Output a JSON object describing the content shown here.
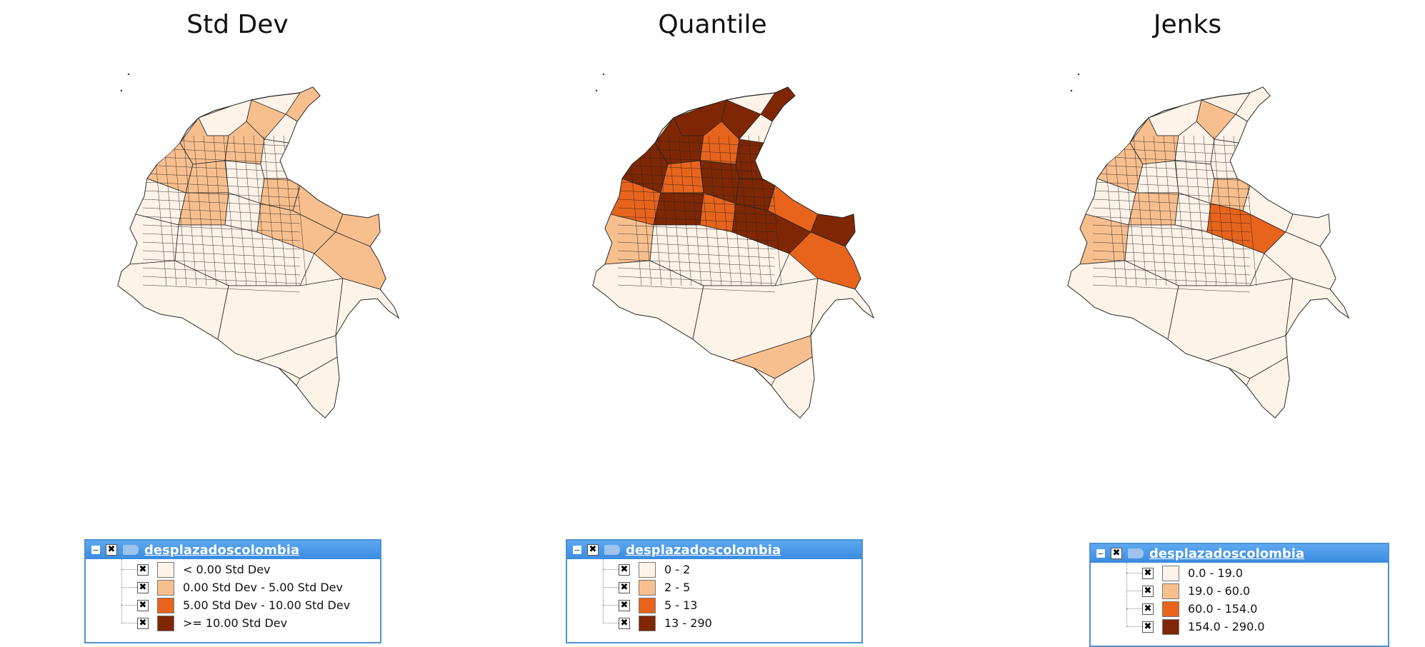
{
  "colors": {
    "class0": "#fef3e8",
    "class1": "#f8bf8e",
    "class2": "#e8641c",
    "class3": "#7f2704",
    "legend_border": "#4d90d6"
  },
  "icons": {
    "collapse": "collapse-icon",
    "check": "check-icon",
    "layer": "layer-icon"
  },
  "panels": [
    {
      "title": "Std Dev",
      "legend": {
        "collapse_glyph": "−",
        "check_glyph": "✖",
        "layer_name": "desplazadoscolombia",
        "classes": [
          {
            "label": "< 0.00 Std Dev",
            "color": "#fef3e8"
          },
          {
            "label": "0.00 Std Dev - 5.00 Std Dev",
            "color": "#f8bf8e"
          },
          {
            "label": "5.00 Std Dev - 10.00 Std Dev",
            "color": "#e8641c"
          },
          {
            "label": ">= 10.00 Std Dev",
            "color": "#7f2704"
          }
        ]
      },
      "region_classes": [
        1,
        1,
        0,
        1,
        1,
        0,
        1,
        1,
        0,
        1,
        1,
        1,
        0,
        1,
        0,
        1,
        1,
        0,
        0,
        0,
        0,
        0,
        0,
        0,
        0
      ]
    },
    {
      "title": "Quantile",
      "legend": {
        "collapse_glyph": "−",
        "check_glyph": "✖",
        "layer_name": "desplazadoscolombia",
        "classes": [
          {
            "label": "0 - 2",
            "color": "#fef3e8"
          },
          {
            "label": "2 - 5",
            "color": "#f8bf8e"
          },
          {
            "label": "5 - 13",
            "color": "#e8641c"
          },
          {
            "label": "13 - 290",
            "color": "#7f2704"
          }
        ]
      },
      "region_classes": [
        3,
        3,
        3,
        3,
        2,
        3,
        3,
        2,
        3,
        3,
        2,
        3,
        2,
        3,
        2,
        3,
        2,
        1,
        0,
        0,
        0,
        0,
        1,
        0,
        0
      ]
    },
    {
      "title": "Jenks",
      "legend": {
        "collapse_glyph": "−",
        "check_glyph": "✖",
        "layer_name": "desplazadoscolombia",
        "classes": [
          {
            "label": "0.0 - 19.0",
            "color": "#fef3e8"
          },
          {
            "label": "19.0 - 60.0",
            "color": "#f8bf8e"
          },
          {
            "label": "60.0 - 154.0",
            "color": "#e8641c"
          },
          {
            "label": "154.0 - 290.0",
            "color": "#7f2704"
          }
        ]
      },
      "region_classes": [
        0,
        1,
        0,
        1,
        0,
        0,
        1,
        0,
        0,
        1,
        0,
        0,
        0,
        1,
        0,
        2,
        0,
        1,
        0,
        0,
        0,
        0,
        0,
        0,
        0
      ]
    }
  ]
}
